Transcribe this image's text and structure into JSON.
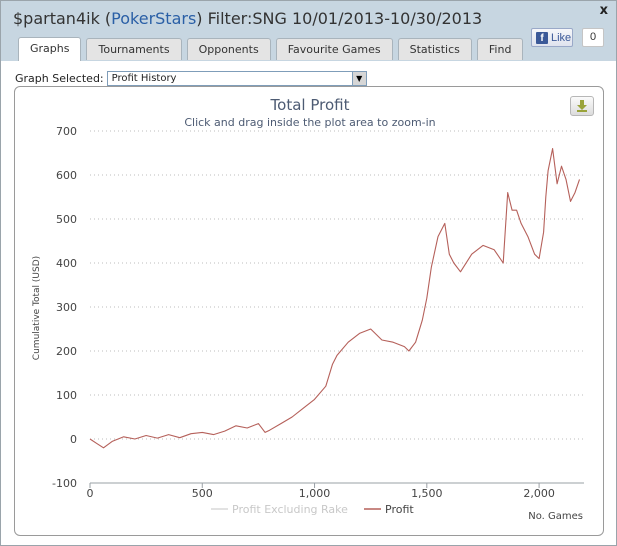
{
  "window": {
    "player": "$partan4ik",
    "site": "PokerStars",
    "filter": "Filter:SNG 10/01/2013-10/30/2013",
    "close_label": "x"
  },
  "tabs": [
    {
      "label": "Graphs",
      "active": true
    },
    {
      "label": "Tournaments",
      "active": false
    },
    {
      "label": "Opponents",
      "active": false
    },
    {
      "label": "Favourite Games",
      "active": false
    },
    {
      "label": "Statistics",
      "active": false
    },
    {
      "label": "Find",
      "active": false
    }
  ],
  "facebook": {
    "label": "Like",
    "count": "0",
    "color": "#3b5998"
  },
  "graph_select": {
    "label": "Graph Selected:",
    "value": "Profit History"
  },
  "chart_data": {
    "type": "line",
    "title": "Total Profit",
    "subtitle": "Click and drag inside the plot area to zoom-in",
    "xlabel": "No. Games",
    "ylabel": "Cumulative Total (USD)",
    "xlim": [
      0,
      2200
    ],
    "ylim": [
      -100,
      700
    ],
    "xticks": [
      0,
      500,
      1000,
      1500,
      2000
    ],
    "xtick_labels": [
      "0",
      "500",
      "1,000",
      "1,500",
      "2,000"
    ],
    "yticks": [
      -100,
      0,
      100,
      200,
      300,
      400,
      500,
      600,
      700
    ],
    "grid": "horizontal dotted",
    "legend_position": "bottom-center",
    "series": [
      {
        "name": "Profit Excluding Rake",
        "color": "#d8d8d8",
        "values": []
      },
      {
        "name": "Profit",
        "color": "#b5605a",
        "x": [
          0,
          30,
          60,
          100,
          150,
          200,
          250,
          300,
          350,
          400,
          450,
          500,
          550,
          600,
          650,
          700,
          750,
          780,
          800,
          850,
          900,
          950,
          1000,
          1050,
          1080,
          1100,
          1150,
          1200,
          1250,
          1300,
          1350,
          1400,
          1420,
          1450,
          1480,
          1500,
          1520,
          1550,
          1580,
          1600,
          1620,
          1650,
          1700,
          1750,
          1800,
          1840,
          1860,
          1880,
          1900,
          1920,
          1950,
          1980,
          2000,
          2020,
          2030,
          2040,
          2060,
          2080,
          2100,
          2120,
          2140,
          2160,
          2180
        ],
        "values": [
          0,
          -10,
          -20,
          -5,
          5,
          0,
          8,
          2,
          10,
          3,
          12,
          15,
          10,
          18,
          30,
          25,
          35,
          15,
          20,
          35,
          50,
          70,
          90,
          120,
          170,
          190,
          220,
          240,
          250,
          225,
          220,
          210,
          200,
          220,
          270,
          320,
          390,
          460,
          490,
          420,
          400,
          380,
          420,
          440,
          430,
          400,
          560,
          520,
          520,
          490,
          460,
          420,
          410,
          470,
          550,
          610,
          660,
          580,
          620,
          590,
          540,
          560,
          590
        ]
      }
    ]
  }
}
